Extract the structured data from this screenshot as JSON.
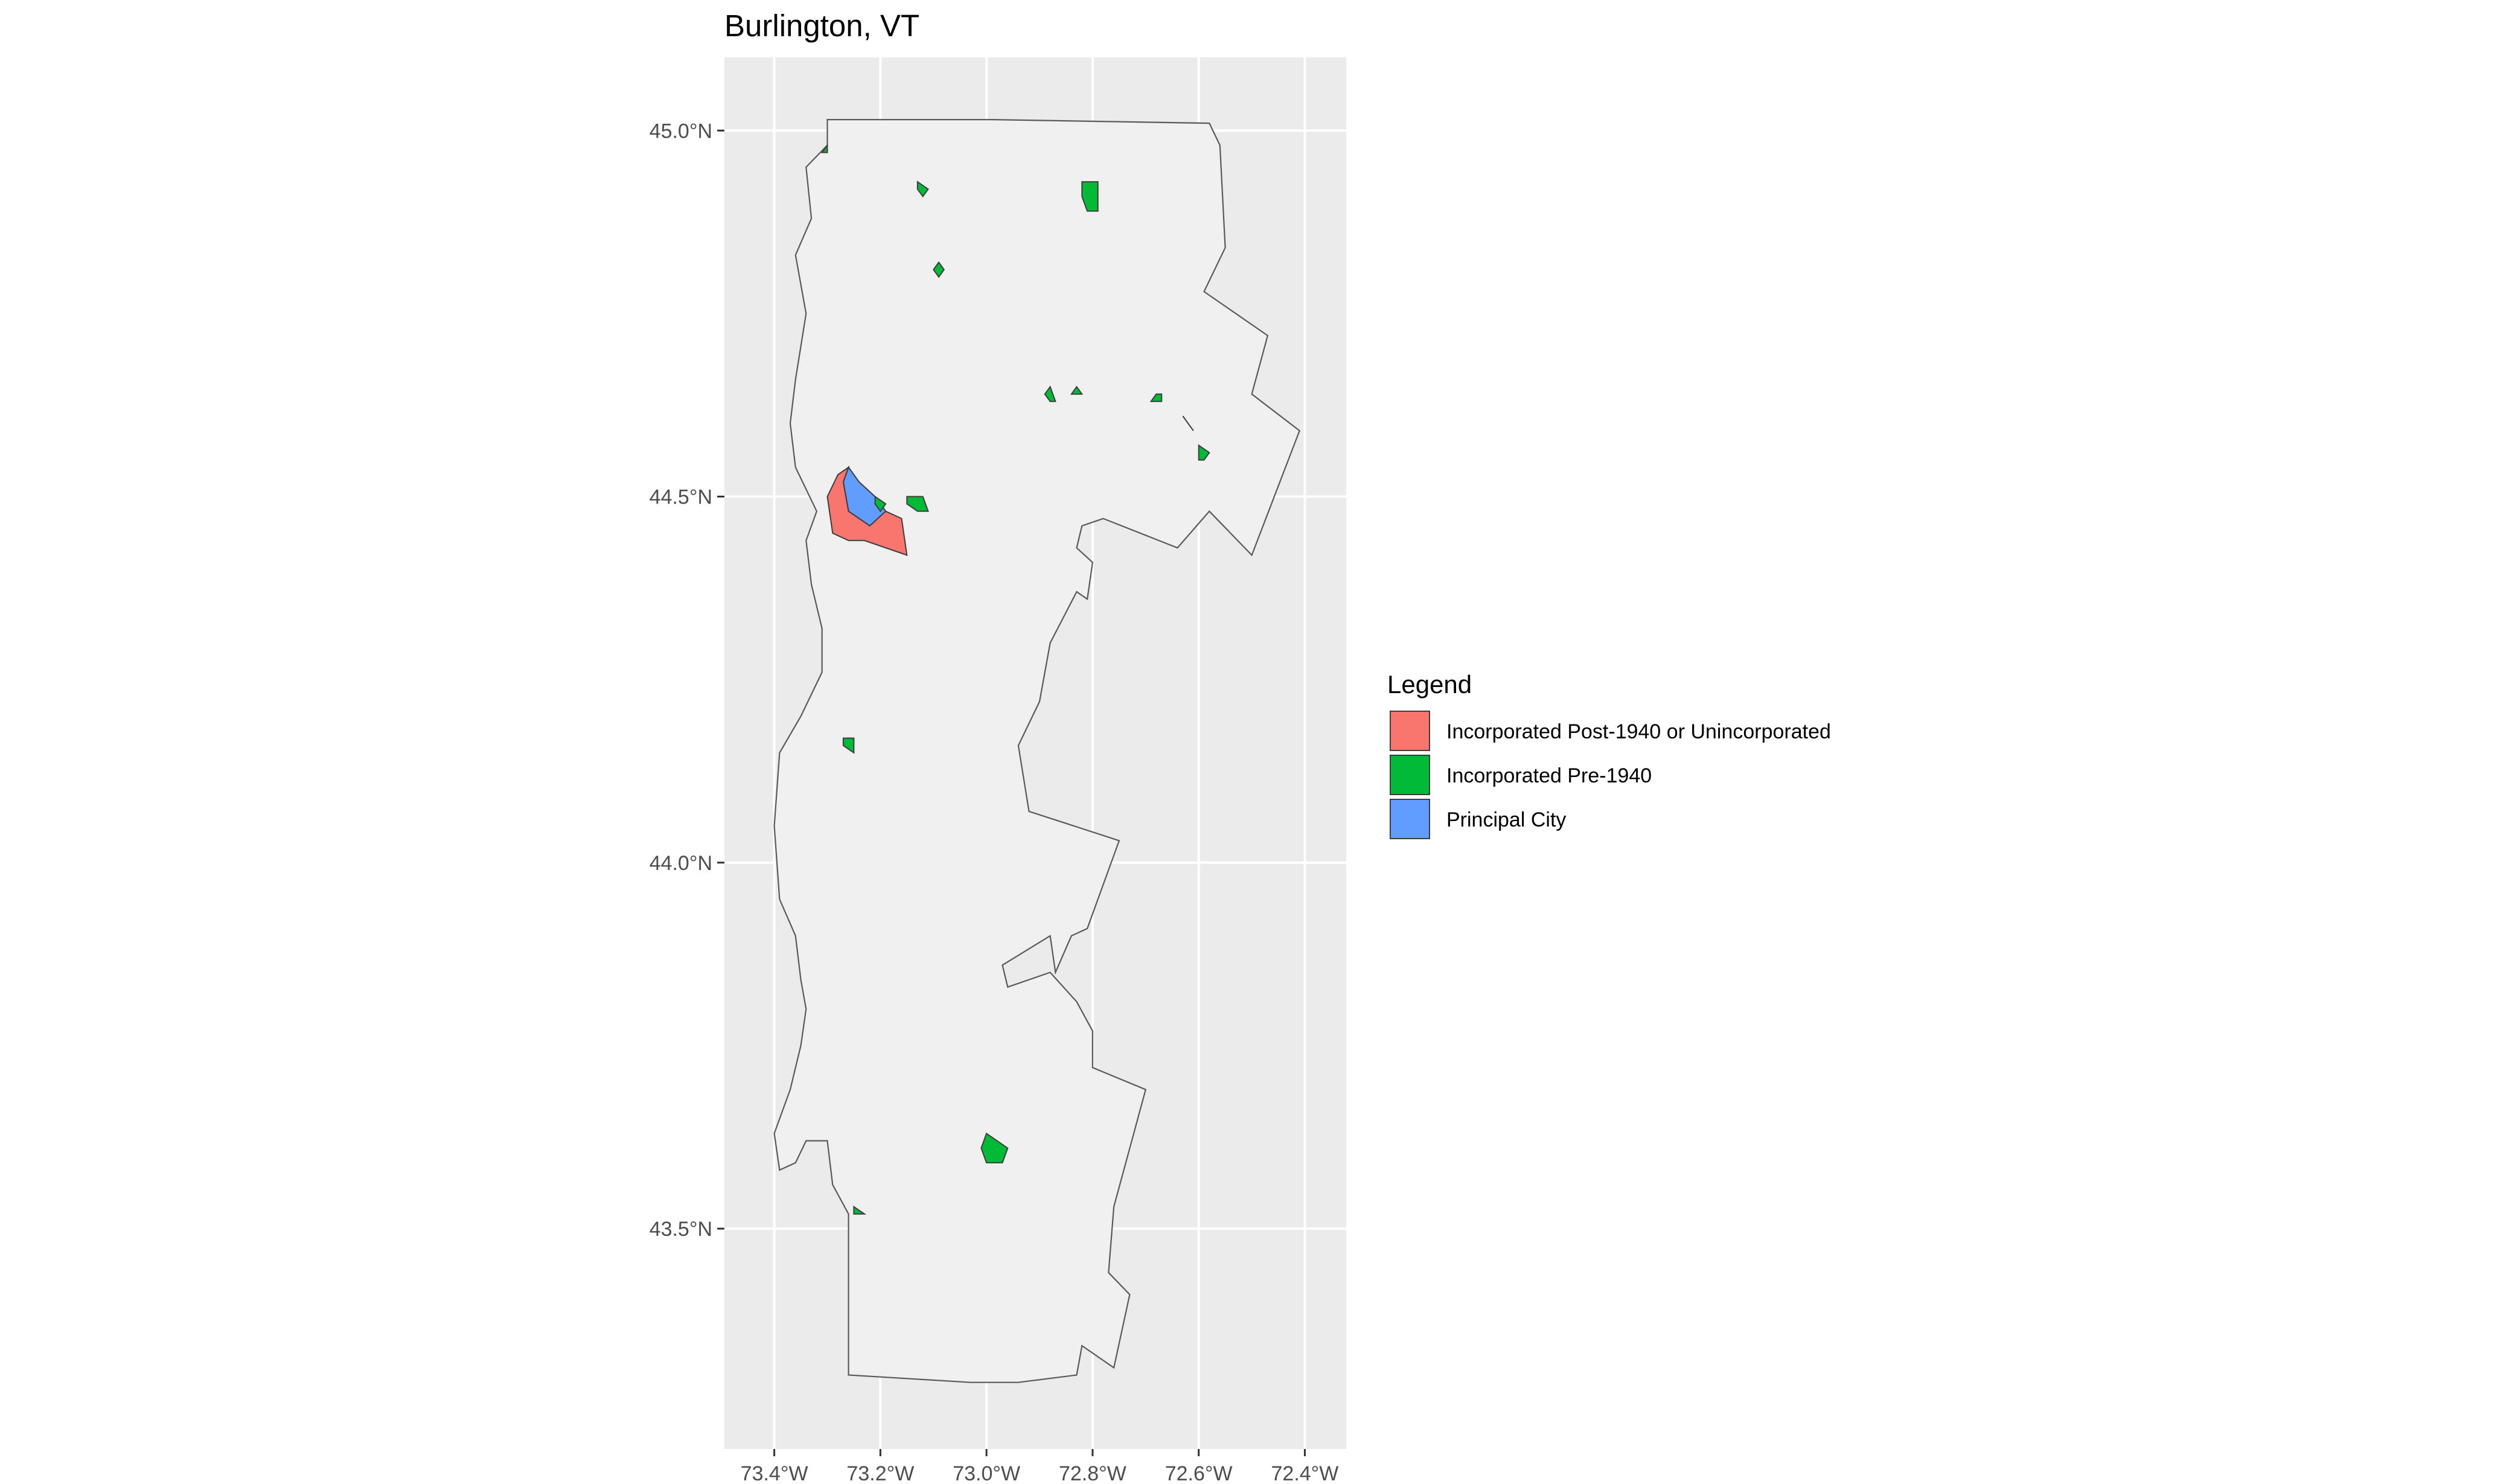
{
  "title": "Burlington, VT",
  "axes": {
    "x_ticks": [
      {
        "value": -73.4,
        "label": "73.4°W"
      },
      {
        "value": -73.2,
        "label": "73.2°W"
      },
      {
        "value": -73.0,
        "label": "73.0°W"
      },
      {
        "value": -72.8,
        "label": "72.8°W"
      },
      {
        "value": -72.6,
        "label": "72.6°W"
      },
      {
        "value": -72.4,
        "label": "72.4°W"
      }
    ],
    "y_ticks": [
      {
        "value": 45.0,
        "label": "45.0°N"
      },
      {
        "value": 44.5,
        "label": "44.5°N"
      },
      {
        "value": 44.0,
        "label": "44.0°N"
      },
      {
        "value": 43.5,
        "label": "43.5°N"
      }
    ],
    "xlim": [
      -73.494,
      -72.322
    ],
    "ylim": [
      43.199,
      45.1
    ]
  },
  "legend": {
    "title": "Legend",
    "items": [
      {
        "label": "Incorporated Post-1940 or Unincorporated",
        "color": "#F8766D"
      },
      {
        "label": "Incorporated Pre-1940",
        "color": "#00BA38"
      },
      {
        "label": "Principal City",
        "color": "#619CFF"
      }
    ]
  },
  "colors": {
    "panel_background": "#ebebeb",
    "grid": "#ffffff",
    "region_fill": "#f0f0f0",
    "region_outline": "#5a5a5a"
  },
  "chart_data": {
    "type": "map",
    "title": "Burlington, VT",
    "region_outline": [
      [
        -73.3,
        45.015
      ],
      [
        -73.03,
        45.015
      ],
      [
        -72.99,
        45.015
      ],
      [
        -72.58,
        45.01
      ],
      [
        -72.56,
        44.98
      ],
      [
        -72.55,
        44.84
      ],
      [
        -72.59,
        44.78
      ],
      [
        -72.47,
        44.72
      ],
      [
        -72.5,
        44.64
      ],
      [
        -72.41,
        44.59
      ],
      [
        -72.5,
        44.42
      ],
      [
        -72.58,
        44.48
      ],
      [
        -72.64,
        44.43
      ],
      [
        -72.78,
        44.47
      ],
      [
        -72.82,
        44.46
      ],
      [
        -72.83,
        44.43
      ],
      [
        -72.8,
        44.41
      ],
      [
        -72.81,
        44.36
      ],
      [
        -72.83,
        44.37
      ],
      [
        -72.88,
        44.3
      ],
      [
        -72.9,
        44.22
      ],
      [
        -72.94,
        44.16
      ],
      [
        -72.92,
        44.07
      ],
      [
        -72.75,
        44.03
      ],
      [
        -72.81,
        43.91
      ],
      [
        -72.84,
        43.9
      ],
      [
        -72.87,
        43.85
      ],
      [
        -72.88,
        43.9
      ],
      [
        -72.97,
        43.86
      ],
      [
        -72.96,
        43.83
      ],
      [
        -72.88,
        43.85
      ],
      [
        -72.83,
        43.81
      ],
      [
        -72.8,
        43.77
      ],
      [
        -72.8,
        43.72
      ],
      [
        -72.7,
        43.69
      ],
      [
        -72.76,
        43.53
      ],
      [
        -72.77,
        43.44
      ],
      [
        -72.73,
        43.41
      ],
      [
        -72.76,
        43.31
      ],
      [
        -72.82,
        43.34
      ],
      [
        -72.83,
        43.3
      ],
      [
        -72.94,
        43.29
      ],
      [
        -73.03,
        43.29
      ],
      [
        -73.26,
        43.3
      ],
      [
        -73.26,
        43.52
      ],
      [
        -73.29,
        43.56
      ],
      [
        -73.3,
        43.62
      ],
      [
        -73.34,
        43.62
      ],
      [
        -73.36,
        43.59
      ],
      [
        -73.39,
        43.58
      ],
      [
        -73.4,
        43.63
      ],
      [
        -73.37,
        43.69
      ],
      [
        -73.35,
        43.75
      ],
      [
        -73.34,
        43.8
      ],
      [
        -73.35,
        43.84
      ],
      [
        -73.36,
        43.9
      ],
      [
        -73.39,
        43.95
      ],
      [
        -73.4,
        44.05
      ],
      [
        -73.39,
        44.15
      ],
      [
        -73.35,
        44.2
      ],
      [
        -73.31,
        44.26
      ],
      [
        -73.31,
        44.32
      ],
      [
        -73.33,
        44.38
      ],
      [
        -73.34,
        44.44
      ],
      [
        -73.32,
        44.48
      ],
      [
        -73.36,
        44.54
      ],
      [
        -73.37,
        44.6
      ],
      [
        -73.36,
        44.66
      ],
      [
        -73.34,
        44.75
      ],
      [
        -73.36,
        44.83
      ],
      [
        -73.33,
        44.88
      ],
      [
        -73.34,
        44.95
      ],
      [
        -73.3,
        44.98
      ],
      [
        -73.3,
        45.015
      ]
    ],
    "places": [
      {
        "category": "Principal City",
        "coords": [
          [
            -73.26,
            44.54
          ],
          [
            -73.24,
            44.52
          ],
          [
            -73.21,
            44.5
          ],
          [
            -73.19,
            44.48
          ],
          [
            -73.22,
            44.46
          ],
          [
            -73.26,
            44.48
          ],
          [
            -73.27,
            44.52
          ]
        ]
      },
      {
        "category": "Incorporated Post-1940 or Unincorporated",
        "coords": [
          [
            -73.28,
            44.53
          ],
          [
            -73.26,
            44.54
          ],
          [
            -73.27,
            44.52
          ],
          [
            -73.26,
            44.48
          ],
          [
            -73.22,
            44.46
          ],
          [
            -73.19,
            44.48
          ],
          [
            -73.16,
            44.47
          ],
          [
            -73.15,
            44.42
          ],
          [
            -73.23,
            44.44
          ],
          [
            -73.26,
            44.44
          ],
          [
            -73.29,
            44.45
          ],
          [
            -73.3,
            44.5
          ]
        ]
      },
      {
        "category": "Incorporated Pre-1940",
        "coords": [
          [
            -73.3,
            44.98
          ],
          [
            -73.31,
            44.97
          ],
          [
            -73.3,
            44.97
          ]
        ]
      },
      {
        "category": "Incorporated Pre-1940",
        "coords": [
          [
            -73.13,
            44.93
          ],
          [
            -73.11,
            44.92
          ],
          [
            -73.12,
            44.91
          ],
          [
            -73.13,
            44.92
          ]
        ]
      },
      {
        "category": "Incorporated Pre-1940",
        "coords": [
          [
            -72.82,
            44.93
          ],
          [
            -72.79,
            44.93
          ],
          [
            -72.79,
            44.89
          ],
          [
            -72.81,
            44.89
          ],
          [
            -72.82,
            44.91
          ]
        ]
      },
      {
        "category": "Incorporated Pre-1940",
        "coords": [
          [
            -73.09,
            44.82
          ],
          [
            -73.08,
            44.81
          ],
          [
            -73.09,
            44.8
          ],
          [
            -73.1,
            44.81
          ]
        ]
      },
      {
        "category": "Incorporated Pre-1940",
        "coords": [
          [
            -72.88,
            44.65
          ],
          [
            -72.87,
            44.63
          ],
          [
            -72.88,
            44.63
          ],
          [
            -72.89,
            44.64
          ]
        ]
      },
      {
        "category": "Incorporated Pre-1940",
        "coords": [
          [
            -72.83,
            44.65
          ],
          [
            -72.82,
            44.64
          ],
          [
            -72.83,
            44.64
          ],
          [
            -72.84,
            44.64
          ]
        ]
      },
      {
        "category": "Incorporated Pre-1940",
        "coords": [
          [
            -72.68,
            44.64
          ],
          [
            -72.67,
            44.64
          ],
          [
            -72.67,
            44.63
          ],
          [
            -72.69,
            44.63
          ]
        ]
      },
      {
        "category": "Incorporated Pre-1940",
        "coords": [
          [
            -72.63,
            44.61
          ],
          [
            -72.61,
            44.59
          ],
          [
            -72.62,
            44.6
          ]
        ]
      },
      {
        "category": "Incorporated Pre-1940",
        "coords": [
          [
            -72.6,
            44.57
          ],
          [
            -72.58,
            44.56
          ],
          [
            -72.59,
            44.55
          ],
          [
            -72.6,
            44.55
          ]
        ]
      },
      {
        "category": "Incorporated Pre-1940",
        "coords": [
          [
            -73.21,
            44.5
          ],
          [
            -73.19,
            44.49
          ],
          [
            -73.2,
            44.48
          ],
          [
            -73.21,
            44.49
          ]
        ]
      },
      {
        "category": "Incorporated Pre-1940",
        "coords": [
          [
            -73.15,
            44.5
          ],
          [
            -73.12,
            44.5
          ],
          [
            -73.11,
            44.48
          ],
          [
            -73.13,
            44.48
          ],
          [
            -73.15,
            44.49
          ]
        ]
      },
      {
        "category": "Incorporated Pre-1940",
        "coords": [
          [
            -73.27,
            44.17
          ],
          [
            -73.25,
            44.17
          ],
          [
            -73.25,
            44.15
          ],
          [
            -73.27,
            44.16
          ]
        ]
      },
      {
        "category": "Incorporated Pre-1940",
        "coords": [
          [
            -73.0,
            43.63
          ],
          [
            -72.96,
            43.61
          ],
          [
            -72.97,
            43.59
          ],
          [
            -73.0,
            43.59
          ],
          [
            -73.01,
            43.61
          ]
        ]
      },
      {
        "category": "Incorporated Pre-1940",
        "coords": [
          [
            -73.25,
            43.53
          ],
          [
            -73.23,
            43.52
          ],
          [
            -73.25,
            43.52
          ]
        ]
      }
    ]
  }
}
